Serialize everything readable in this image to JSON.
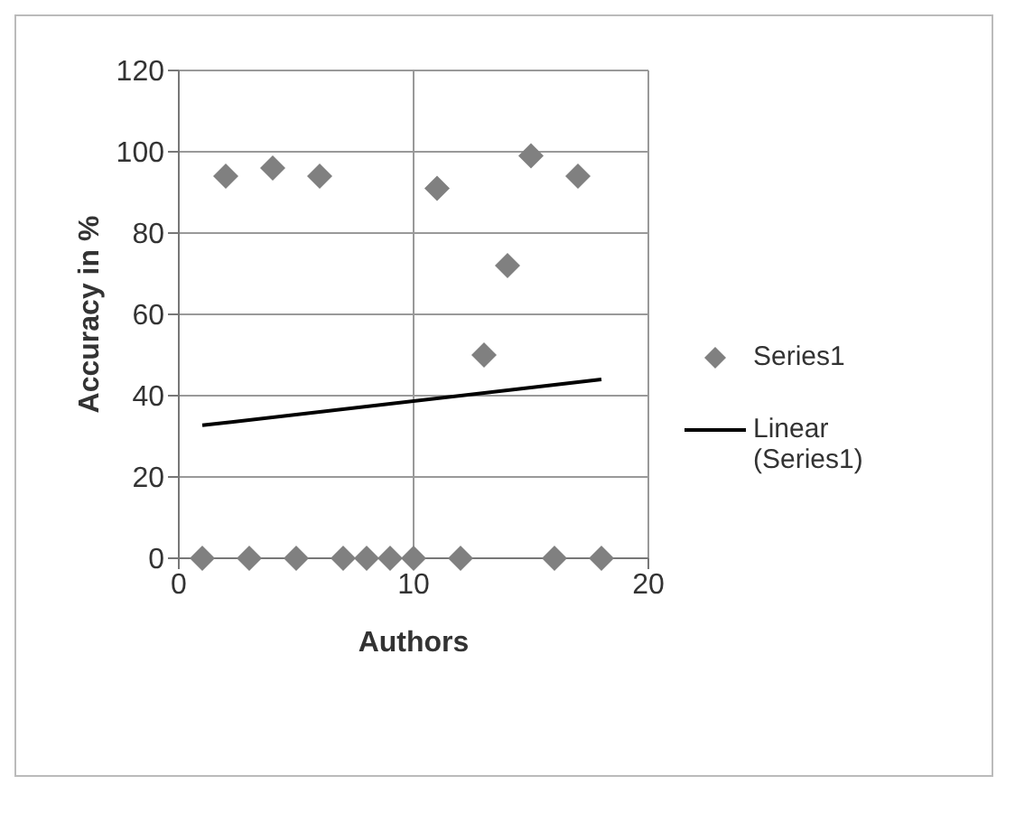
{
  "chart_data": {
    "type": "scatter",
    "xlabel": "Authors",
    "ylabel": "Accuracy in %",
    "x": [
      1,
      2,
      3,
      4,
      5,
      6,
      7,
      8,
      9,
      10,
      11,
      12,
      13,
      14,
      15,
      16,
      17,
      18
    ],
    "series": [
      {
        "name": "Series1",
        "color": "#808080",
        "marker": "diamond",
        "values": [
          0,
          94,
          0,
          96,
          0,
          94,
          0,
          0,
          0,
          0,
          91,
          0,
          50,
          72,
          99,
          0,
          94,
          0
        ]
      },
      {
        "name": "Linear (Series1)",
        "type": "line",
        "color": "#000000",
        "x": [
          1,
          18
        ],
        "values": [
          32.7,
          44
        ],
        "line_style": "solid"
      }
    ],
    "xlim": [
      0,
      20
    ],
    "xticks": [
      0,
      10,
      20
    ],
    "ylim": [
      0,
      120
    ],
    "yticks": [
      0,
      20,
      40,
      60,
      80,
      100,
      120
    ],
    "grid": true,
    "legend": "right"
  }
}
